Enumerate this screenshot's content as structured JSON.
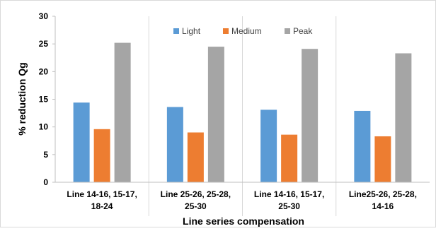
{
  "chart_data": {
    "type": "bar",
    "title": "",
    "xlabel": "Line series compensation",
    "ylabel": "% reduction Qg",
    "ylim": [
      0,
      30
    ],
    "yticks": [
      0,
      5,
      10,
      15,
      20,
      25,
      30
    ],
    "grid": false,
    "legend_position": "top-center",
    "categories": [
      [
        "Line 14-16, 15-17,",
        "18-24"
      ],
      [
        "Line 25-26, 25-28,",
        "25-30"
      ],
      [
        "Line 14-16, 15-17,",
        "25-30"
      ],
      [
        "Line25-26, 25-28,",
        "14-16"
      ]
    ],
    "series": [
      {
        "name": "Light",
        "color": "#5b9bd5",
        "values": [
          14.4,
          13.6,
          13.1,
          12.9
        ]
      },
      {
        "name": "Medium",
        "color": "#ed7d31",
        "values": [
          9.6,
          9.0,
          8.6,
          8.3
        ]
      },
      {
        "name": "Peak",
        "color": "#a5a5a5",
        "values": [
          25.2,
          24.5,
          24.1,
          23.3
        ]
      }
    ]
  }
}
